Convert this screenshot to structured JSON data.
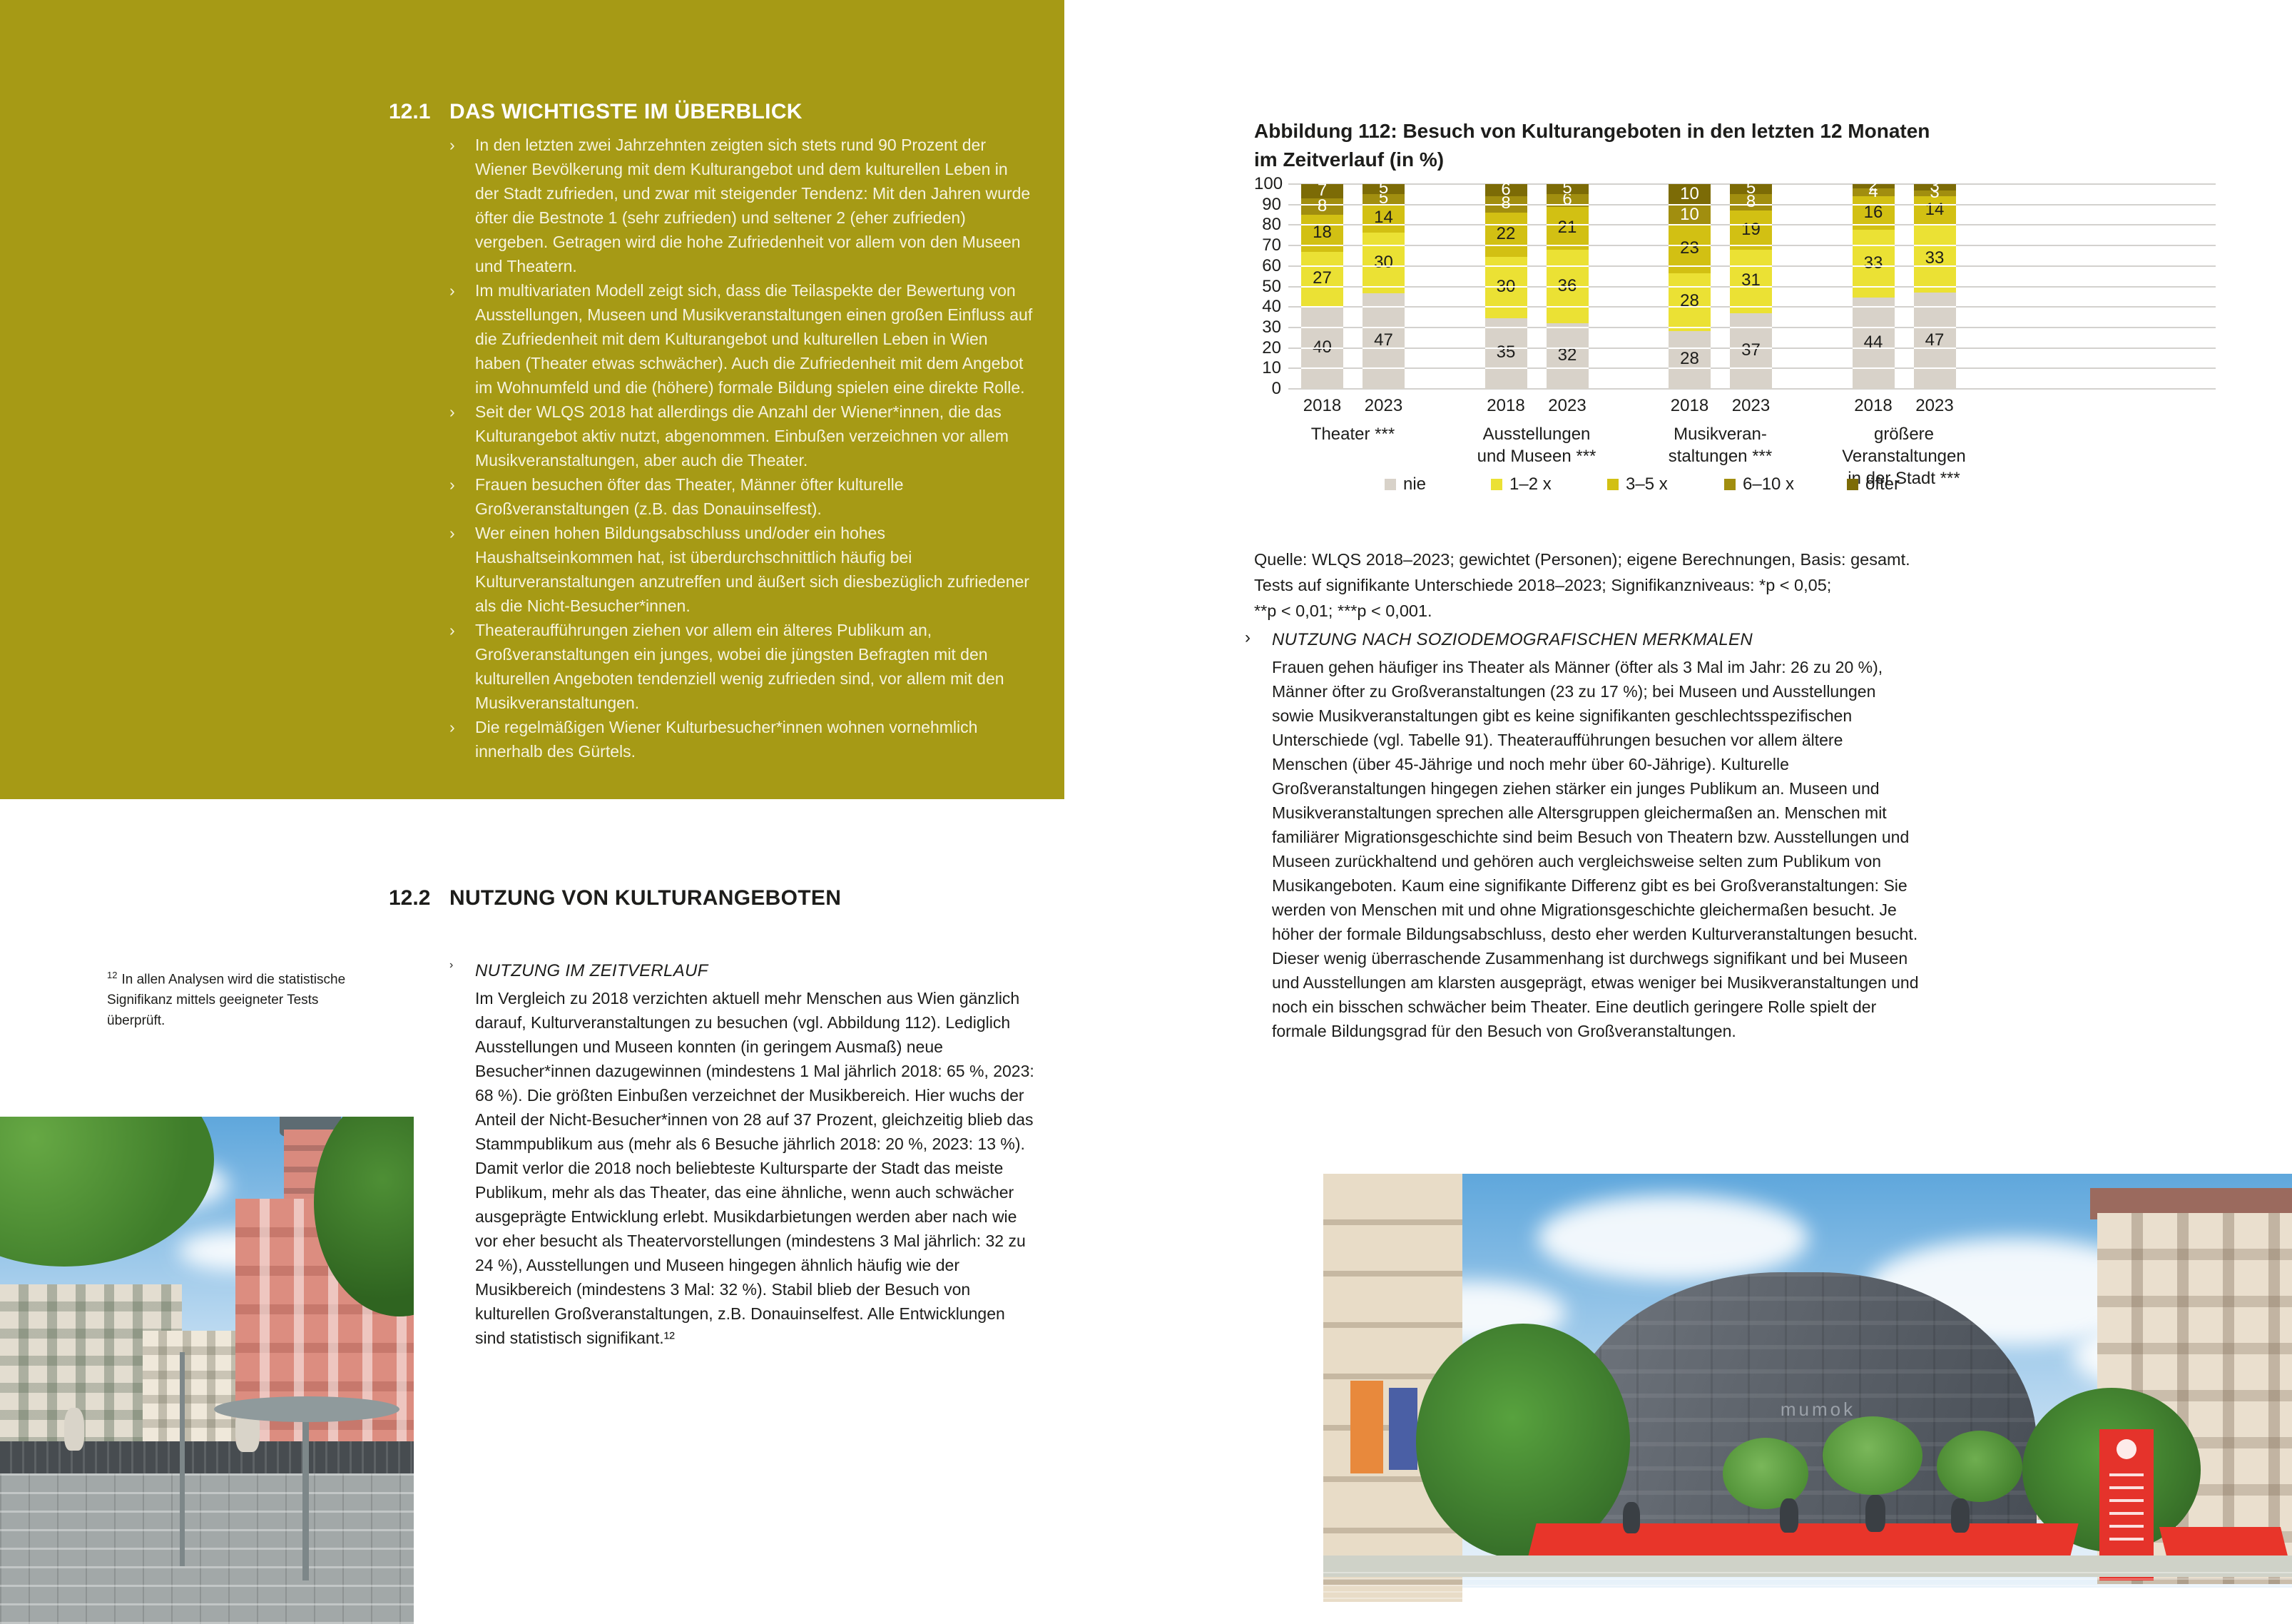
{
  "bullet_char": "›",
  "left": {
    "section1": {
      "number": "12.1",
      "title": "DAS WICHTIGSTE IM ÜBERBLICK",
      "bullets": [
        "In den letzten zwei Jahrzehnten zeigten sich stets rund 90 Prozent der Wiener Bevölkerung mit dem Kulturangebot und dem kulturellen Leben in der Stadt zufrieden, und zwar mit steigender Tendenz: Mit den Jahren wurde öfter die Bestnote 1 (sehr zufrieden) und seltener 2 (eher zufrieden) vergeben. Getragen wird die hohe Zufriedenheit vor allem von den Museen und Theatern.",
        "Im multivariaten Modell zeigt sich, dass die Teilaspekte der Bewertung von Ausstellungen, Museen und Musikveranstaltungen einen großen Einfluss auf die Zufriedenheit mit dem Kulturangebot und kulturellen Leben in Wien haben (Theater etwas schwächer). Auch die Zufriedenheit mit dem Angebot im Wohnumfeld und die (höhere) formale Bildung spielen eine direkte Rolle.",
        "Seit der WLQS 2018 hat allerdings die Anzahl der Wiener*innen, die das Kulturangebot aktiv nutzt, abgenommen. Einbußen verzeichnen vor allem Musikveranstaltungen, aber auch die Theater.",
        "Frauen besuchen öfter das Theater, Männer öfter kulturelle Großveranstaltungen (z.B. das Donauinselfest).",
        "Wer einen hohen Bildungsabschluss und/oder ein hohes Haushaltseinkommen hat, ist überdurchschnittlich häufig bei Kulturveranstaltungen anzutreffen und äußert sich diesbezüglich zufriedener als die Nicht-Besucher*innen.",
        "Theateraufführungen ziehen vor allem ein älteres Publikum an, Großveranstaltungen ein junges, wobei die jüngsten Befragten mit den kulturellen Angeboten tendenziell wenig zufrieden sind, vor allem mit den Musikveranstaltungen.",
        "Die regelmäßigen Wiener Kulturbesucher*innen wohnen vornehmlich innerhalb des Gürtels."
      ]
    },
    "section2": {
      "number": "12.2",
      "title": "NUTZUNG VON KULTURANGEBOTEN",
      "subheading": "NUTZUNG IM ZEITVERLAUF",
      "paragraph": "Im Vergleich zu 2018 verzichten aktuell mehr Menschen aus Wien gänzlich darauf, Kulturveranstaltungen zu besuchen (vgl. Abbildung 112). Lediglich Ausstellungen und Museen konnten (in geringem Ausmaß) neue Besucher*innen dazugewinnen (mindestens 1 Mal jährlich 2018: 65 %, 2023: 68 %). Die größten Einbußen verzeichnet der Musikbereich. Hier wuchs der Anteil der Nicht-Besucher*innen von 28 auf 37 Prozent, gleichzeitig blieb das Stammpublikum aus (mehr als 6 Besuche jährlich 2018: 20 %, 2023: 13 %). Damit verlor die 2018 noch beliebteste Kultursparte der Stadt das meiste Publikum, mehr als das Theater, das eine ähnliche, wenn auch schwächer ausgeprägte Entwicklung erlebt. Musikdarbietungen werden aber nach wie vor eher besucht als Theatervorstellungen (mindestens 3 Mal jährlich: 32 zu 24 %), Ausstellungen und Museen hingegen ähnlich häufig wie der Musikbereich (mindestens 3 Mal: 32 %). Stabil blieb der Besuch von kulturellen Großveranstaltungen, z.B. Donauinselfest. Alle Entwicklungen sind statistisch signifikant.¹²"
    },
    "footnote": {
      "marker": "12",
      "text": "In allen Analysen wird die statistische Signifikanz mittels geeigneter Tests überprüft."
    },
    "photo": "apollo-kino-building-street-scene"
  },
  "right": {
    "figure": {
      "title": "Abbildung 112: Besuch von Kulturangeboten in den letzten 12 Monaten im Zeitverlauf (in %)",
      "title_lines": [
        "Abbildung 112: Besuch von Kulturangeboten in den letzten 12 Monaten",
        "im Zeitverlauf (in %)"
      ],
      "source_lines": [
        "Quelle: WLQS 2018–2023; gewichtet (Personen); eigene Berechnungen, Basis: gesamt.",
        "Tests auf signifikante Unterschiede 2018–2023; Signifikanzniveaus: *p < 0,05;",
        "**p < 0,01; ***p < 0,001."
      ]
    },
    "usage": {
      "heading": "NUTZUNG NACH SOZIODEMOGRAFISCHEN MERKMALEN",
      "paragraph": "Frauen gehen häufiger ins Theater als Männer (öfter als 3 Mal im Jahr: 26 zu 20 %), Männer öfter zu Großveranstaltungen (23 zu 17 %); bei Museen und Ausstellungen sowie Musikveranstaltungen gibt es keine signifikanten geschlechtsspezifischen Unterschiede (vgl. Tabelle 91). Theateraufführungen besuchen vor allem ältere Menschen (über 45-Jährige und noch mehr über 60-Jährige). Kulturelle Großveranstaltungen hingegen ziehen stärker ein junges Publikum an. Museen und Musikveranstaltungen sprechen alle Altersgruppen gleichermaßen an. Menschen mit familiärer Migrationsgeschichte sind beim Besuch von Theatern bzw. Ausstellungen und Museen zurückhaltend und gehören auch vergleichsweise selten zum Publikum von Musikangeboten. Kaum eine signifikante Differenz gibt es bei Großveranstaltungen: Sie werden von Menschen mit und ohne Migrationsgeschichte gleichermaßen besucht. Je höher der formale Bildungsabschluss, desto eher werden Kulturveranstaltungen besucht. Dieser wenig überraschende Zusammenhang ist durchwegs signifikant und bei Museen und Ausstellungen am klarsten ausgeprägt, etwas weniger bei Musikveranstaltungen und noch ein bisschen schwächer beim Theater. Eine deutlich geringere Rolle spielt der formale Bildungsgrad für den Besuch von Großveranstaltungen."
    },
    "photo": "museumsquartier-mumok-courtyard"
  },
  "chart_data": {
    "type": "bar",
    "stacked": true,
    "title": "Abbildung 112: Besuch von Kulturangeboten in den letzten 12 Monaten im Zeitverlauf (in %)",
    "ylim": [
      0,
      100
    ],
    "yticks": [
      0,
      10,
      20,
      30,
      40,
      50,
      60,
      70,
      80,
      90,
      100
    ],
    "grid": true,
    "legend_position": "bottom",
    "series": [
      {
        "name": "nie",
        "color": "#d8d2c9",
        "label_color": "#1d1d1b"
      },
      {
        "name": "1–2 x",
        "color": "#ebe134",
        "label_color": "#1d1d1b"
      },
      {
        "name": "3–5 x",
        "color": "#d2c013",
        "label_color": "#1d1d1b"
      },
      {
        "name": "6–10 x",
        "color": "#a18e0f",
        "label_color": "#ffffff"
      },
      {
        "name": "öfter",
        "color": "#7c6b06",
        "label_color": "#ffffff"
      }
    ],
    "groups": [
      {
        "label": "Theater ***",
        "bars": [
          {
            "year": "2018",
            "values": [
              40,
              27,
              18,
              8,
              7
            ]
          },
          {
            "year": "2023",
            "values": [
              47,
              30,
              14,
              5,
              5
            ]
          }
        ]
      },
      {
        "label": "Ausstellungen\nund Museen ***",
        "bars": [
          {
            "year": "2018",
            "values": [
              35,
              30,
              22,
              8,
              6
            ]
          },
          {
            "year": "2023",
            "values": [
              32,
              36,
              21,
              6,
              5
            ]
          }
        ]
      },
      {
        "label": "Musikveran-\nstaltungen ***",
        "bars": [
          {
            "year": "2018",
            "values": [
              28,
              28,
              23,
              10,
              10
            ]
          },
          {
            "year": "2023",
            "values": [
              37,
              31,
              19,
              8,
              5
            ]
          }
        ]
      },
      {
        "label": "größere\nVeranstaltungen\nin der Stadt ***",
        "bars": [
          {
            "year": "2018",
            "values": [
              44,
              33,
              16,
              4,
              2
            ]
          },
          {
            "year": "2023",
            "values": [
              47,
              33,
              14,
              3,
              3
            ]
          }
        ]
      }
    ]
  }
}
